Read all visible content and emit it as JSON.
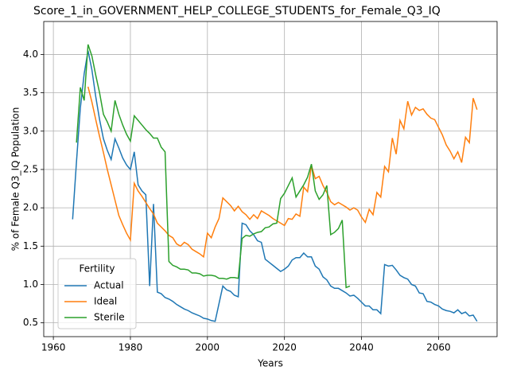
{
  "chart_data": {
    "type": "line",
    "title": "Score_1_in_GOVERNMENT_HELP_COLLEGE_STUDENTS_for_Female_Q3_IQ",
    "xlabel": "Years",
    "ylabel": "% of Female Q3_IQ Population",
    "x": [
      1965,
      1966,
      1967,
      1968,
      1969,
      1970,
      1971,
      1972,
      1973,
      1974,
      1975,
      1976,
      1977,
      1978,
      1979,
      1980,
      1981,
      1982,
      1983,
      1984,
      1985,
      1986,
      1987,
      1988,
      1989,
      1990,
      1991,
      1992,
      1993,
      1994,
      1995,
      1996,
      1997,
      1998,
      1999,
      2000,
      2001,
      2002,
      2003,
      2004,
      2005,
      2006,
      2007,
      2008,
      2009,
      2010,
      2011,
      2012,
      2013,
      2014,
      2015,
      2016,
      2017,
      2018,
      2019,
      2020,
      2021,
      2022,
      2023,
      2024,
      2025,
      2026,
      2027,
      2028,
      2029,
      2030,
      2031,
      2032,
      2033,
      2034,
      2035,
      2036,
      2037,
      2038,
      2039,
      2040,
      2041,
      2042,
      2043,
      2044,
      2045,
      2046,
      2047,
      2048,
      2049,
      2050,
      2051,
      2052,
      2053,
      2054,
      2055,
      2056,
      2057,
      2058,
      2059,
      2060,
      2061,
      2062,
      2063,
      2064,
      2065,
      2066,
      2067,
      2068,
      2069,
      2070
    ],
    "series": [
      {
        "name": "Actual",
        "color": "#1f77b4",
        "values": [
          1.85,
          2.6,
          3.3,
          3.75,
          4.05,
          3.8,
          3.45,
          3.15,
          2.9,
          2.75,
          2.63,
          2.9,
          2.78,
          2.65,
          2.56,
          2.5,
          2.73,
          2.3,
          2.22,
          2.17,
          0.98,
          2.05,
          0.9,
          0.88,
          0.83,
          0.81,
          0.78,
          0.74,
          0.71,
          0.68,
          0.66,
          0.63,
          0.61,
          0.59,
          0.56,
          0.55,
          0.53,
          0.52,
          0.75,
          0.98,
          0.93,
          0.91,
          0.86,
          0.84,
          1.8,
          1.78,
          1.7,
          1.65,
          1.57,
          1.55,
          1.33,
          1.29,
          1.25,
          1.21,
          1.17,
          1.2,
          1.24,
          1.32,
          1.35,
          1.35,
          1.41,
          1.36,
          1.36,
          1.24,
          1.2,
          1.1,
          1.06,
          0.98,
          0.95,
          0.95,
          0.92,
          0.89,
          0.85,
          0.86,
          0.82,
          0.77,
          0.72,
          0.72,
          0.67,
          0.67,
          0.62,
          1.26,
          1.24,
          1.25,
          1.19,
          1.12,
          1.09,
          1.07,
          1.0,
          0.98,
          0.89,
          0.88,
          0.78,
          0.77,
          0.74,
          0.72,
          0.68,
          0.66,
          0.65,
          0.63,
          0.67,
          0.62,
          0.64,
          0.59,
          0.6,
          0.52
        ]
      },
      {
        "name": "Ideal",
        "color": "#ff7f0e",
        "values": [
          null,
          null,
          null,
          null,
          3.58,
          3.38,
          3.15,
          2.93,
          2.72,
          2.5,
          2.3,
          2.1,
          1.9,
          1.78,
          1.67,
          1.58,
          2.32,
          2.22,
          2.15,
          2.07,
          1.99,
          1.92,
          1.8,
          1.75,
          1.7,
          1.64,
          1.61,
          1.53,
          1.5,
          1.55,
          1.52,
          1.46,
          1.43,
          1.4,
          1.36,
          1.67,
          1.61,
          1.75,
          1.86,
          2.13,
          2.08,
          2.03,
          1.96,
          2.02,
          1.95,
          1.91,
          1.85,
          1.91,
          1.86,
          1.96,
          1.93,
          1.9,
          1.86,
          1.83,
          1.8,
          1.77,
          1.86,
          1.85,
          1.92,
          1.89,
          2.27,
          2.21,
          2.55,
          2.38,
          2.41,
          2.29,
          2.2,
          2.08,
          2.04,
          2.07,
          2.04,
          2.01,
          1.97,
          2.0,
          1.97,
          1.88,
          1.81,
          1.98,
          1.91,
          2.2,
          2.14,
          2.54,
          2.47,
          2.91,
          2.7,
          3.14,
          3.03,
          3.39,
          3.21,
          3.31,
          3.27,
          3.29,
          3.22,
          3.17,
          3.15,
          3.05,
          2.95,
          2.82,
          2.74,
          2.64,
          2.73,
          2.59,
          2.92,
          2.85,
          3.43,
          3.28
        ]
      },
      {
        "name": "Sterile",
        "color": "#2ca02c",
        "values": [
          null,
          2.85,
          3.57,
          3.4,
          4.13,
          3.98,
          3.73,
          3.5,
          3.22,
          3.12,
          3.0,
          3.4,
          3.22,
          3.08,
          2.96,
          2.87,
          3.2,
          3.14,
          3.08,
          3.02,
          2.97,
          2.91,
          2.91,
          2.79,
          2.73,
          1.3,
          1.25,
          1.23,
          1.2,
          1.2,
          1.19,
          1.15,
          1.15,
          1.14,
          1.11,
          1.12,
          1.12,
          1.11,
          1.08,
          1.08,
          1.07,
          1.09,
          1.09,
          1.08,
          1.6,
          1.64,
          1.63,
          1.66,
          1.68,
          1.69,
          1.74,
          1.75,
          1.79,
          1.8,
          2.12,
          2.19,
          2.29,
          2.39,
          2.14,
          2.22,
          2.3,
          2.4,
          2.57,
          2.22,
          2.11,
          2.17,
          2.29,
          1.65,
          1.68,
          1.73,
          1.84,
          0.96,
          0.98,
          null,
          null,
          null,
          null,
          null,
          null,
          null,
          null,
          null,
          null,
          null,
          null,
          null,
          null,
          null,
          null,
          null,
          null,
          null,
          null,
          null,
          null,
          null,
          null,
          null,
          null,
          null,
          null,
          null,
          null,
          null,
          null,
          null
        ]
      }
    ],
    "legend_title": "Fertility",
    "legend": "lower left",
    "grid": true,
    "xlim": [
      1957.5,
      2075.2
    ],
    "xticks": [
      1960,
      1980,
      2000,
      2020,
      2040,
      2060
    ],
    "ylim": [
      0.32,
      4.43
    ],
    "yticks": [
      0.5,
      {
        "value": 1,
        "label": "1.0"
      },
      1.5,
      {
        "value": 2,
        "label": "2.0"
      },
      2.5,
      {
        "value": 3,
        "label": "3.0"
      },
      3.5,
      {
        "value": 4,
        "label": "4.0"
      }
    ]
  }
}
